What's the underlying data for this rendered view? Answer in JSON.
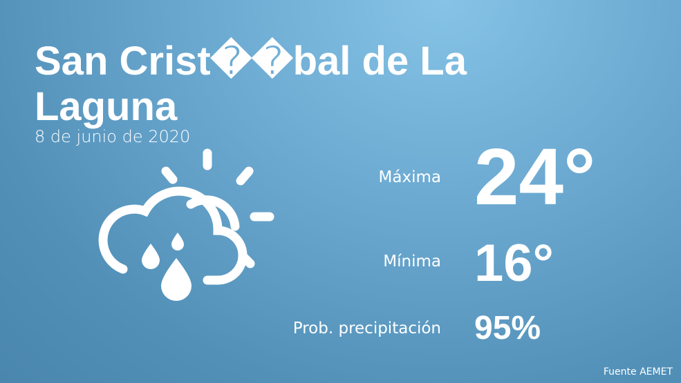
{
  "header": {
    "title": "San Crist��bal de La Laguna",
    "date": "8 de junio de 2020"
  },
  "forecast": [
    {
      "label": "Máxima",
      "value": "24°"
    },
    {
      "label": "Mínima",
      "value": "16°"
    },
    {
      "label": "Prob. precipitación",
      "value": "95%"
    }
  ],
  "footer": {
    "source": "Fuente AEMET"
  }
}
